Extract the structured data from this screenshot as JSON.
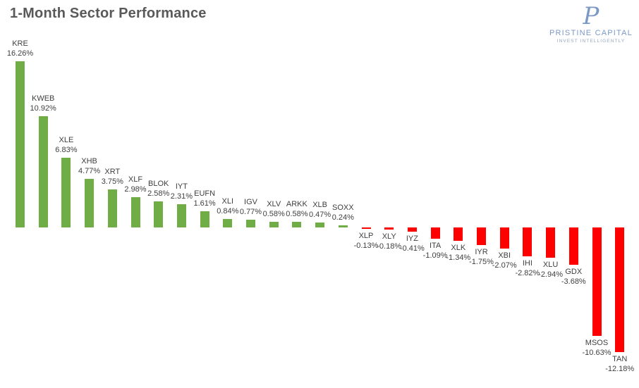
{
  "header": {
    "title": "1-Month Sector Performance"
  },
  "logo": {
    "monogram": "P",
    "name": "PRISTINE CAPITAL",
    "tagline": "INVEST INTELLIGENTLY"
  },
  "colors": {
    "positive_bar": "#70ad47",
    "negative_bar": "#ff0000",
    "title_text": "#595959",
    "label_text": "#3f3f3f",
    "logo_blue": "#7b99c4"
  },
  "chart_data": {
    "type": "bar",
    "title": "1-Month Sector Performance",
    "orientation": "vertical",
    "xlabel": "",
    "ylabel": "",
    "ylim": [
      -12.18,
      16.26
    ],
    "grid": false,
    "axes_visible": false,
    "legend": "none",
    "categories": [
      "KRE",
      "KWEB",
      "XLE",
      "XHB",
      "XRT",
      "XLF",
      "BLOK",
      "IYT",
      "EUFN",
      "XLI",
      "IGV",
      "XLV",
      "ARKK",
      "XLB",
      "SOXX",
      "XLP",
      "XLY",
      "IYZ",
      "ITA",
      "XLK",
      "IYR",
      "XBI",
      "IHI",
      "XLU",
      "GDX",
      "MSOS",
      "TAN"
    ],
    "values": [
      16.26,
      10.92,
      6.83,
      4.77,
      3.75,
      2.98,
      2.58,
      2.31,
      1.61,
      0.84,
      0.77,
      0.58,
      0.58,
      0.47,
      0.24,
      -0.13,
      -0.18,
      -0.41,
      -1.09,
      -1.34,
      -1.75,
      -2.07,
      -2.82,
      -2.94,
      -3.68,
      -10.63,
      -12.18
    ],
    "value_labels": [
      "16.26%",
      "10.92%",
      "6.83%",
      "4.77%",
      "3.75%",
      "2.98%",
      "2.58%",
      "2.31%",
      "1.61%",
      "0.84%",
      "0.77%",
      "0.58%",
      "0.58%",
      "0.47%",
      "0.24%",
      "-0.13%",
      "-0.18%",
      "-0.41%",
      "-1.09%",
      "-1.34%",
      "-1.75%",
      "-2.07%",
      "-2.82%",
      "-2.94%",
      "-3.68%",
      "-10.63%",
      "-12.18%"
    ]
  }
}
